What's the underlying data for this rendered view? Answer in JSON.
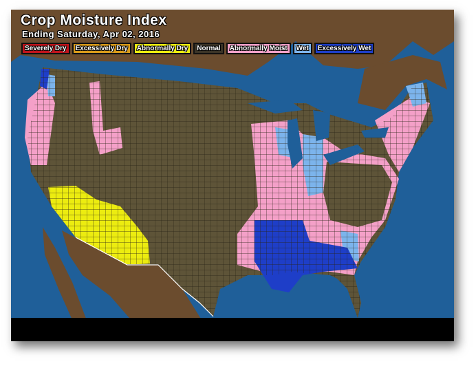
{
  "title": "Crop Moisture Index",
  "subtitle": "Ending Saturday, Apr 02, 2016",
  "legend": [
    {
      "label": "Severely Dry",
      "color": "#c0141c"
    },
    {
      "label": "Excessively Dry",
      "color": "#d89a1a"
    },
    {
      "label": "Abnormally Dry",
      "color": "#ecec10"
    },
    {
      "label": "Normal",
      "color": "#3b3427"
    },
    {
      "label": "Abnormally Moist",
      "color": "#f4a0c8"
    },
    {
      "label": "Wet",
      "color": "#7cb4ec"
    },
    {
      "label": "Excessively Wet",
      "color": "#1e3ec8"
    }
  ],
  "colors": {
    "ocean": "#1f5f99",
    "land": "#6b4c2e",
    "us_normal": "#5e5438"
  }
}
